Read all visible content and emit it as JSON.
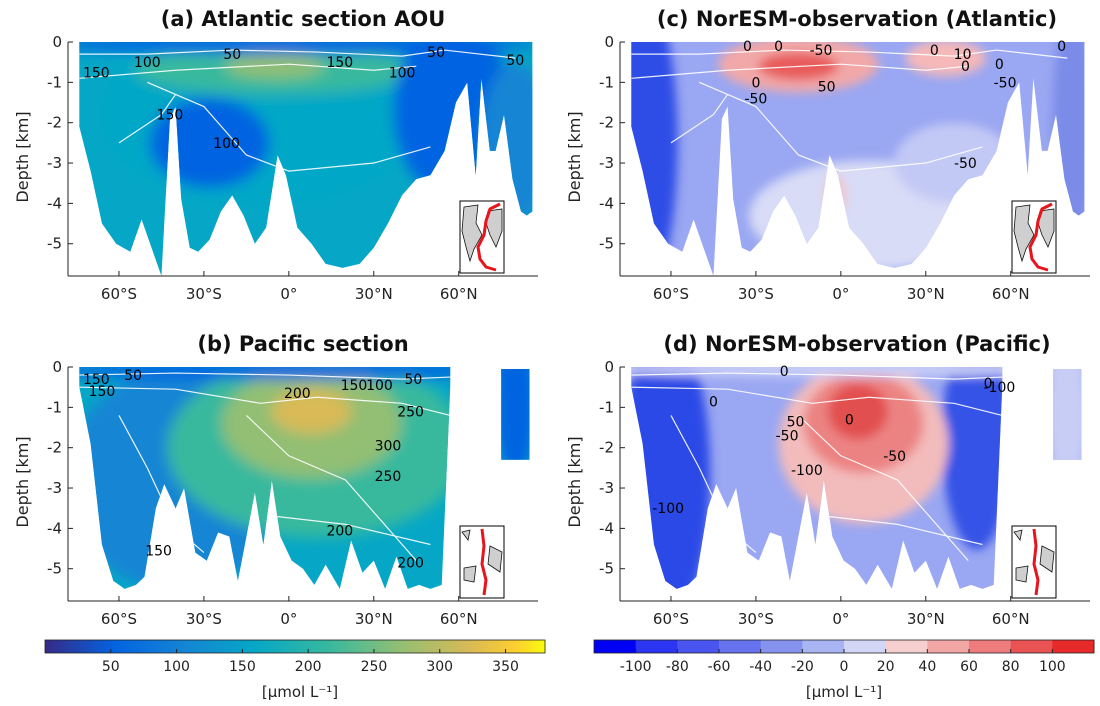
{
  "chart_data": [
    {
      "type": "heatmap",
      "title": "(a) Atlantic section AOU",
      "ylabel": "Depth [km]",
      "xlabel": "",
      "xlim": [
        -78,
        88
      ],
      "ylim": [
        -5.8,
        0
      ],
      "xticks": [
        -60,
        -30,
        0,
        30,
        60
      ],
      "xticklabels": [
        "60°S",
        "30°S",
        "0°",
        "30°N",
        "60°N"
      ],
      "yticks": [
        0,
        -1,
        -2,
        -3,
        -4,
        -5
      ],
      "yticklabels": [
        "0",
        "-1",
        "-2",
        "-3",
        "-4",
        "-5"
      ],
      "grid": false,
      "colorscale": "parula",
      "crange": [
        0,
        380
      ],
      "core": {
        "lat": -5,
        "depth": -0.7,
        "value": 240
      },
      "contour_labels": [
        {
          "text": "50",
          "lat": -20,
          "depth": -0.3
        },
        {
          "text": "50",
          "lat": 52,
          "depth": -0.25
        },
        {
          "text": "50",
          "lat": 80,
          "depth": -0.45
        },
        {
          "text": "100",
          "lat": -50,
          "depth": -0.5
        },
        {
          "text": "100",
          "lat": 40,
          "depth": -0.75
        },
        {
          "text": "100",
          "lat": -22,
          "depth": -2.5
        },
        {
          "text": "150",
          "lat": -68,
          "depth": -0.75
        },
        {
          "text": "150",
          "lat": 18,
          "depth": -0.5
        },
        {
          "text": "150",
          "lat": -42,
          "depth": -1.8
        }
      ],
      "inset": "atlantic"
    },
    {
      "type": "heatmap",
      "title": "(c) NorESM-observation (Atlantic)",
      "ylabel": "Depth [km]",
      "xlabel": "",
      "xlim": [
        -78,
        88
      ],
      "ylim": [
        -5.8,
        0
      ],
      "xticks": [
        -60,
        -30,
        0,
        30,
        60
      ],
      "xticklabels": [
        "60°S",
        "30°S",
        "0°",
        "30°N",
        "60°N"
      ],
      "yticks": [
        0,
        -1,
        -2,
        -3,
        -4,
        -5
      ],
      "yticklabels": [
        "0",
        "-1",
        "-2",
        "-3",
        "-4",
        "-5"
      ],
      "grid": false,
      "colorscale": "diverging blue-white-red",
      "crange": [
        -120,
        120
      ],
      "contour_labels": [
        {
          "text": "0",
          "lat": -33,
          "depth": -0.1
        },
        {
          "text": "0",
          "lat": -22,
          "depth": -0.1
        },
        {
          "text": "-50",
          "lat": -7,
          "depth": -0.2
        },
        {
          "text": "0",
          "lat": -30,
          "depth": -1.0
        },
        {
          "text": "-50",
          "lat": -30,
          "depth": -1.4
        },
        {
          "text": "50",
          "lat": -5,
          "depth": -1.1
        },
        {
          "text": "0",
          "lat": 33,
          "depth": -0.2
        },
        {
          "text": "10",
          "lat": 43,
          "depth": -0.3
        },
        {
          "text": "0",
          "lat": 44,
          "depth": -0.6
        },
        {
          "text": "0",
          "lat": 56,
          "depth": -0.55
        },
        {
          "text": "-50",
          "lat": 58,
          "depth": -1.0
        },
        {
          "text": "0",
          "lat": 78,
          "depth": -0.1
        },
        {
          "text": "-50",
          "lat": 44,
          "depth": -3.0
        }
      ],
      "inset": "atlantic"
    },
    {
      "type": "heatmap",
      "title": "(b) Pacific section",
      "ylabel": "Depth [km]",
      "xlabel": "",
      "xlim": [
        -78,
        88
      ],
      "ylim": [
        -5.8,
        0
      ],
      "xticks": [
        -60,
        -30,
        0,
        30,
        60
      ],
      "xticklabels": [
        "60°S",
        "30°S",
        "0°",
        "30°N",
        "60°N"
      ],
      "yticks": [
        0,
        -1,
        -2,
        -3,
        -4,
        -5
      ],
      "yticklabels": [
        "0",
        "-1",
        "-2",
        "-3",
        "-4",
        "-5"
      ],
      "grid": false,
      "colorscale": "parula",
      "crange": [
        0,
        380
      ],
      "core": {
        "lat": 8,
        "depth": -1.1,
        "value": 330
      },
      "contour_labels": [
        {
          "text": "150",
          "lat": -68,
          "depth": -0.3
        },
        {
          "text": "150",
          "lat": -66,
          "depth": -0.6
        },
        {
          "text": "50",
          "lat": -55,
          "depth": -0.2
        },
        {
          "text": "200",
          "lat": 3,
          "depth": -0.65
        },
        {
          "text": "150",
          "lat": 23,
          "depth": -0.45
        },
        {
          "text": "100",
          "lat": 32,
          "depth": -0.45
        },
        {
          "text": "50",
          "lat": 44,
          "depth": -0.3
        },
        {
          "text": "250",
          "lat": 43,
          "depth": -1.1
        },
        {
          "text": "300",
          "lat": 35,
          "depth": -1.95
        },
        {
          "text": "250",
          "lat": 35,
          "depth": -2.7
        },
        {
          "text": "200",
          "lat": 18,
          "depth": -4.05
        },
        {
          "text": "200",
          "lat": 43,
          "depth": -4.85
        },
        {
          "text": "150",
          "lat": -46,
          "depth": -4.55
        }
      ],
      "inset": "pacific"
    },
    {
      "type": "heatmap",
      "title": "(d) NorESM-observation (Pacific)",
      "ylabel": "Depth [km]",
      "xlabel": "",
      "xlim": [
        -78,
        88
      ],
      "ylim": [
        -5.8,
        0
      ],
      "xticks": [
        -60,
        -30,
        0,
        30,
        60
      ],
      "xticklabels": [
        "60°S",
        "30°S",
        "0°",
        "30°N",
        "60°N"
      ],
      "yticks": [
        0,
        -1,
        -2,
        -3,
        -4,
        -5
      ],
      "yticklabels": [
        "0",
        "-1",
        "-2",
        "-3",
        "-4",
        "-5"
      ],
      "grid": false,
      "colorscale": "diverging blue-white-red",
      "crange": [
        -120,
        120
      ],
      "contour_labels": [
        {
          "text": "0",
          "lat": -45,
          "depth": -0.85
        },
        {
          "text": "0",
          "lat": -20,
          "depth": -0.1
        },
        {
          "text": "50",
          "lat": -16,
          "depth": -1.35
        },
        {
          "text": "0",
          "lat": 3,
          "depth": -1.3
        },
        {
          "text": "-50",
          "lat": -19,
          "depth": -1.7
        },
        {
          "text": "-50",
          "lat": 19,
          "depth": -2.2
        },
        {
          "text": "-100",
          "lat": -12,
          "depth": -2.55
        },
        {
          "text": "-100",
          "lat": -61,
          "depth": -3.5
        },
        {
          "text": "0",
          "lat": 52,
          "depth": -0.4
        },
        {
          "text": "-100",
          "lat": 56,
          "depth": -0.5
        }
      ],
      "inset": "pacific"
    }
  ],
  "colorbars": [
    {
      "scale": "parula",
      "range": [
        0,
        380
      ],
      "ticks": [
        50,
        100,
        150,
        200,
        250,
        300,
        350
      ],
      "ticklabels": [
        "50",
        "100",
        "150",
        "200",
        "250",
        "300",
        "350"
      ],
      "unit": "[μmol L⁻¹]"
    },
    {
      "scale": "diverging blue-white-red",
      "range": [
        -120,
        120
      ],
      "ticks": [
        -100,
        -80,
        -60,
        -40,
        -20,
        0,
        20,
        40,
        60,
        80,
        100
      ],
      "ticklabels": [
        "-100",
        "-80",
        "-60",
        "-40",
        "-20",
        "0",
        "20",
        "40",
        "60",
        "80",
        "100"
      ],
      "unit": "[μmol L⁻¹]"
    }
  ]
}
